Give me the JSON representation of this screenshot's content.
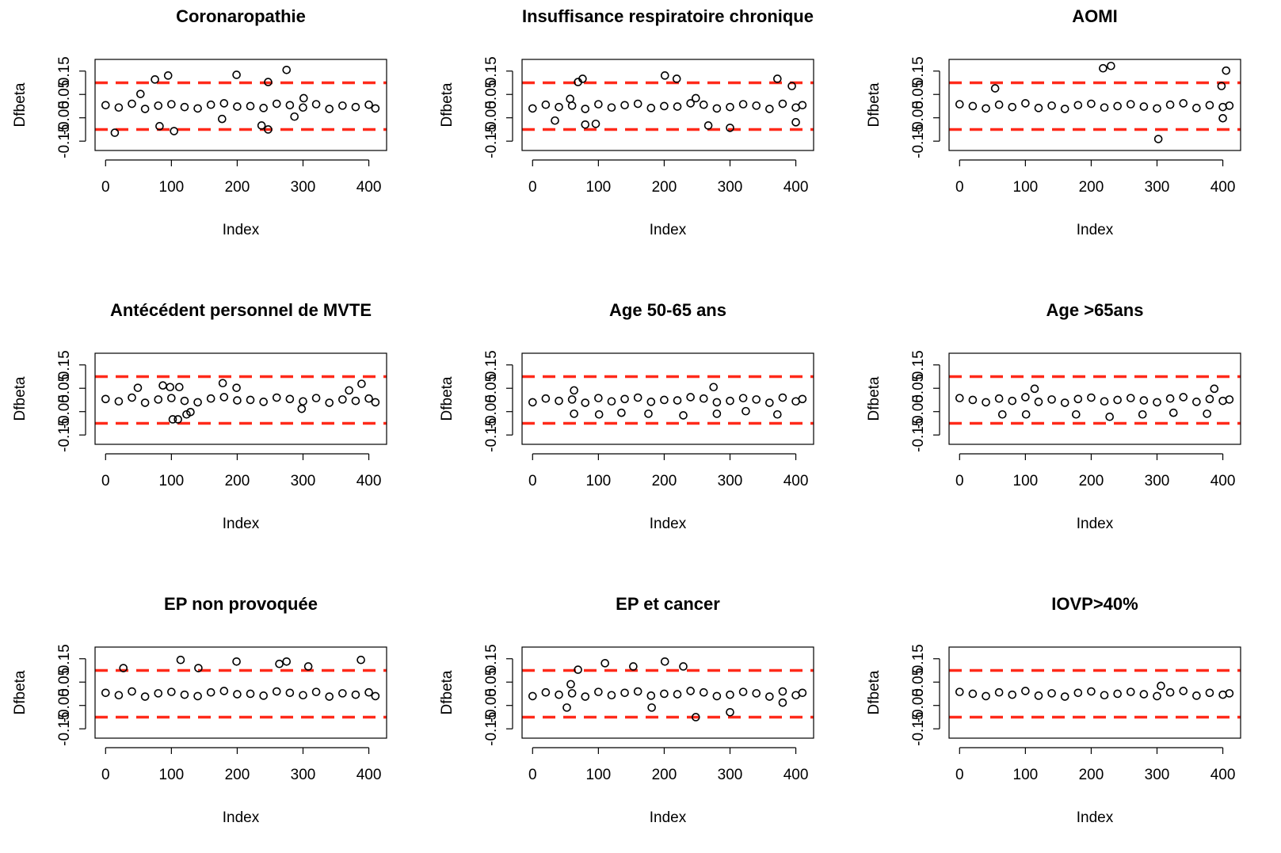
{
  "chart_data": [
    {
      "type": "scatter",
      "title": "Coronaropathie",
      "xlabel": "Index",
      "ylabel": "Dfbeta",
      "color": "#000000",
      "hline_color": "#ff2a1a",
      "hlines": [
        0.1,
        -0.1
      ],
      "xlim": [
        -16,
        427
      ],
      "ylim": [
        -0.19,
        0.2
      ],
      "xticks": [
        0,
        100,
        200,
        300,
        400
      ],
      "yticks": [
        -0.15,
        -0.05,
        0.05,
        0.15
      ],
      "x": [
        0,
        20,
        40,
        60,
        80,
        100,
        120,
        140,
        160,
        180,
        200,
        220,
        240,
        260,
        280,
        300,
        320,
        340,
        360,
        380,
        400,
        410,
        14,
        53,
        75,
        95,
        82,
        104,
        199,
        247,
        275,
        237,
        247,
        177,
        287,
        301
      ],
      "values": [
        0.004,
        -0.006,
        0.01,
        -0.012,
        0.002,
        0.008,
        -0.004,
        -0.01,
        0.006,
        0.012,
        -0.002,
        0.0,
        -0.008,
        0.01,
        0.004,
        -0.006,
        0.008,
        -0.012,
        0.002,
        -0.004,
        0.006,
        -0.01,
        -0.114,
        0.052,
        0.114,
        0.131,
        -0.086,
        -0.107,
        0.134,
        0.103,
        0.155,
        -0.083,
        -0.1,
        -0.055,
        -0.045,
        0.034
      ]
    },
    {
      "type": "scatter",
      "title": "Insuffisance respiratoire chronique",
      "xlabel": "Index",
      "ylabel": "Dfbeta",
      "color": "#000000",
      "hline_color": "#ff2a1a",
      "hlines": [
        0.1,
        -0.1
      ],
      "xlim": [
        -16,
        427
      ],
      "ylim": [
        -0.19,
        0.2
      ],
      "xticks": [
        0,
        100,
        200,
        300,
        400
      ],
      "yticks": [
        -0.15,
        -0.05,
        0.05,
        0.15
      ],
      "x": [
        0,
        20,
        40,
        60,
        80,
        100,
        120,
        140,
        160,
        180,
        200,
        220,
        240,
        260,
        280,
        300,
        320,
        340,
        360,
        380,
        400,
        410,
        34,
        69,
        76,
        80,
        96,
        57,
        201,
        219,
        248,
        267,
        300,
        372,
        394,
        400
      ],
      "values": [
        -0.01,
        0.006,
        -0.004,
        0.002,
        -0.012,
        0.008,
        -0.006,
        0.004,
        0.01,
        -0.008,
        0.0,
        -0.002,
        0.012,
        0.006,
        -0.01,
        -0.004,
        0.008,
        0.002,
        -0.012,
        0.01,
        -0.006,
        0.004,
        -0.062,
        0.103,
        0.117,
        -0.079,
        -0.076,
        0.031,
        0.131,
        0.117,
        0.034,
        -0.083,
        -0.093,
        0.117,
        0.086,
        -0.069
      ]
    },
    {
      "type": "scatter",
      "title": "AOMI",
      "xlabel": "Index",
      "ylabel": "Dfbeta",
      "color": "#000000",
      "hline_color": "#ff2a1a",
      "hlines": [
        0.1,
        -0.1
      ],
      "xlim": [
        -16,
        427
      ],
      "ylim": [
        -0.19,
        0.2
      ],
      "xticks": [
        0,
        100,
        200,
        300,
        400
      ],
      "yticks": [
        -0.15,
        -0.05,
        0.05,
        0.15
      ],
      "x": [
        0,
        20,
        40,
        60,
        80,
        100,
        120,
        140,
        160,
        180,
        200,
        220,
        240,
        260,
        280,
        300,
        320,
        340,
        360,
        380,
        400,
        410,
        54,
        218,
        230,
        302,
        398,
        405,
        400
      ],
      "values": [
        0.008,
        0.0,
        -0.01,
        0.006,
        -0.004,
        0.012,
        -0.008,
        0.002,
        -0.012,
        0.004,
        0.01,
        -0.006,
        0.0,
        0.008,
        -0.002,
        -0.01,
        0.006,
        0.012,
        -0.008,
        0.004,
        -0.004,
        0.002,
        0.076,
        0.162,
        0.172,
        -0.141,
        0.086,
        0.152,
        -0.052
      ]
    },
    {
      "type": "scatter",
      "title": "Antécédent personnel de MVTE",
      "xlabel": "Index",
      "ylabel": "Dfbeta",
      "color": "#000000",
      "hline_color": "#ff2a1a",
      "hlines": [
        0.1,
        -0.1
      ],
      "xlim": [
        -16,
        427
      ],
      "ylim": [
        -0.19,
        0.2
      ],
      "xticks": [
        0,
        100,
        200,
        300,
        400
      ],
      "yticks": [
        -0.15,
        -0.05,
        0.05,
        0.15
      ],
      "x": [
        0,
        20,
        40,
        60,
        80,
        100,
        120,
        140,
        160,
        180,
        200,
        220,
        240,
        260,
        280,
        300,
        320,
        340,
        360,
        380,
        400,
        410,
        87,
        98,
        112,
        178,
        199,
        102,
        110,
        123,
        129,
        370,
        389,
        298,
        49
      ],
      "values": [
        0.004,
        -0.006,
        0.01,
        -0.012,
        0.002,
        0.008,
        -0.004,
        -0.01,
        0.006,
        0.012,
        -0.002,
        0.0,
        -0.008,
        0.01,
        0.004,
        -0.006,
        0.008,
        -0.012,
        0.002,
        -0.004,
        0.006,
        -0.01,
        0.062,
        0.055,
        0.055,
        0.072,
        0.052,
        -0.083,
        -0.083,
        -0.062,
        -0.052,
        0.041,
        0.069,
        -0.038,
        0.052
      ]
    },
    {
      "type": "scatter",
      "title": "Age 50-65 ans",
      "xlabel": "Index",
      "ylabel": "Dfbeta",
      "color": "#000000",
      "hline_color": "#ff2a1a",
      "hlines": [
        0.1,
        -0.1
      ],
      "xlim": [
        -16,
        427
      ],
      "ylim": [
        -0.19,
        0.2
      ],
      "xticks": [
        0,
        100,
        200,
        300,
        400
      ],
      "yticks": [
        -0.15,
        -0.05,
        0.05,
        0.15
      ],
      "x": [
        0,
        20,
        40,
        60,
        80,
        100,
        120,
        140,
        160,
        180,
        200,
        220,
        240,
        260,
        280,
        300,
        320,
        340,
        360,
        380,
        400,
        410,
        63,
        101,
        229,
        280,
        372,
        135,
        176,
        63,
        275,
        324
      ],
      "values": [
        -0.01,
        0.006,
        -0.004,
        0.002,
        -0.012,
        0.008,
        -0.006,
        0.004,
        0.01,
        -0.008,
        0.0,
        -0.002,
        0.012,
        0.006,
        -0.01,
        -0.004,
        0.008,
        0.002,
        -0.012,
        0.01,
        -0.006,
        0.004,
        -0.059,
        -0.062,
        -0.066,
        -0.059,
        -0.062,
        -0.055,
        -0.059,
        0.041,
        0.055,
        -0.048
      ]
    },
    {
      "type": "scatter",
      "title": "Age >65ans",
      "xlabel": "Index",
      "ylabel": "Dfbeta",
      "color": "#000000",
      "hline_color": "#ff2a1a",
      "hlines": [
        0.1,
        -0.1
      ],
      "xlim": [
        -16,
        427
      ],
      "ylim": [
        -0.19,
        0.2
      ],
      "xticks": [
        0,
        100,
        200,
        300,
        400
      ],
      "yticks": [
        -0.15,
        -0.05,
        0.05,
        0.15
      ],
      "x": [
        0,
        20,
        40,
        60,
        80,
        100,
        120,
        140,
        160,
        180,
        200,
        220,
        240,
        260,
        280,
        300,
        320,
        340,
        360,
        380,
        400,
        410,
        65,
        101,
        114,
        228,
        278,
        325,
        376,
        387,
        177
      ],
      "values": [
        0.008,
        0.0,
        -0.01,
        0.006,
        -0.004,
        0.012,
        -0.008,
        0.002,
        -0.012,
        0.004,
        0.01,
        -0.006,
        0.0,
        0.008,
        -0.002,
        -0.01,
        0.006,
        0.012,
        -0.008,
        0.004,
        -0.004,
        0.002,
        -0.062,
        -0.062,
        0.048,
        -0.072,
        -0.062,
        -0.055,
        -0.059,
        0.048,
        -0.062
      ]
    },
    {
      "type": "scatter",
      "title": "EP non provoquée",
      "xlabel": "Index",
      "ylabel": "Dfbeta",
      "color": "#000000",
      "hline_color": "#ff2a1a",
      "hlines": [
        0.1,
        -0.1
      ],
      "xlim": [
        -16,
        427
      ],
      "ylim": [
        -0.19,
        0.2
      ],
      "xticks": [
        0,
        100,
        200,
        300,
        400
      ],
      "yticks": [
        -0.15,
        -0.05,
        0.05,
        0.15
      ],
      "x": [
        0,
        20,
        40,
        60,
        80,
        100,
        120,
        140,
        160,
        180,
        200,
        220,
        240,
        260,
        280,
        300,
        320,
        340,
        360,
        380,
        400,
        410,
        27,
        114,
        141,
        199,
        264,
        275,
        308,
        388
      ],
      "values": [
        0.004,
        -0.006,
        0.01,
        -0.012,
        0.002,
        0.008,
        -0.004,
        -0.01,
        0.006,
        0.012,
        -0.002,
        0.0,
        -0.008,
        0.01,
        0.004,
        -0.006,
        0.008,
        -0.012,
        0.002,
        -0.004,
        0.006,
        -0.01,
        0.11,
        0.145,
        0.11,
        0.138,
        0.128,
        0.138,
        0.117,
        0.145
      ]
    },
    {
      "type": "scatter",
      "title": "EP et cancer",
      "xlabel": "Index",
      "ylabel": "Dfbeta",
      "color": "#000000",
      "hline_color": "#ff2a1a",
      "hlines": [
        0.1,
        -0.1
      ],
      "xlim": [
        -16,
        427
      ],
      "ylim": [
        -0.19,
        0.2
      ],
      "xticks": [
        0,
        100,
        200,
        300,
        400
      ],
      "yticks": [
        -0.15,
        -0.05,
        0.05,
        0.15
      ],
      "x": [
        0,
        20,
        40,
        60,
        80,
        100,
        120,
        140,
        160,
        180,
        200,
        220,
        240,
        260,
        280,
        300,
        320,
        340,
        360,
        380,
        400,
        410,
        69,
        110,
        153,
        201,
        229,
        52,
        58,
        181,
        248,
        300,
        380
      ],
      "values": [
        -0.01,
        0.006,
        -0.004,
        0.002,
        -0.012,
        0.008,
        -0.006,
        0.004,
        0.01,
        -0.008,
        0.0,
        -0.002,
        0.012,
        0.006,
        -0.01,
        -0.004,
        0.008,
        0.002,
        -0.012,
        0.01,
        -0.006,
        0.004,
        0.103,
        0.131,
        0.117,
        0.138,
        0.117,
        -0.059,
        0.041,
        -0.059,
        -0.1,
        -0.079,
        -0.038
      ]
    },
    {
      "type": "scatter",
      "title": "IOVP>40%",
      "xlabel": "Index",
      "ylabel": "Dfbeta",
      "color": "#000000",
      "hline_color": "#ff2a1a",
      "hlines": [
        0.1,
        -0.1
      ],
      "xlim": [
        -16,
        427
      ],
      "ylim": [
        -0.19,
        0.2
      ],
      "xticks": [
        0,
        100,
        200,
        300,
        400
      ],
      "yticks": [
        -0.15,
        -0.05,
        0.05,
        0.15
      ],
      "x": [
        0,
        20,
        40,
        60,
        80,
        100,
        120,
        140,
        160,
        180,
        200,
        220,
        240,
        260,
        280,
        300,
        320,
        340,
        360,
        380,
        400,
        410,
        306
      ],
      "values": [
        0.008,
        0.0,
        -0.01,
        0.006,
        -0.004,
        0.012,
        -0.008,
        0.002,
        -0.012,
        0.004,
        0.01,
        -0.006,
        0.0,
        0.008,
        -0.002,
        -0.01,
        0.006,
        0.012,
        -0.008,
        0.004,
        -0.004,
        0.002,
        0.034
      ]
    }
  ]
}
